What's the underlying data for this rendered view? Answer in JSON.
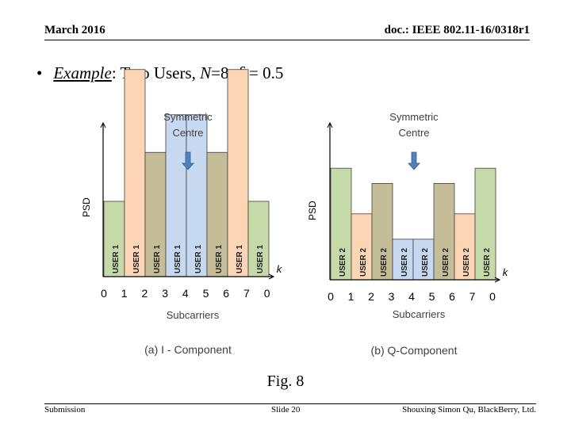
{
  "header": {
    "date": "March 2016",
    "doc_id": "doc.: IEEE 802.11-16/0318r1"
  },
  "bullet": {
    "example_label": "Example",
    "text_a": ": Two Users, ",
    "n_var": "N",
    "text_b": "=8, ",
    "delta": "δ",
    "text_c": " = 0.5"
  },
  "figure_caption": "Fig. 8",
  "footer": {
    "left": "Submission",
    "center": "Slide 20",
    "right": "Shouxing Simon Qu, BlackBerry, Ltd."
  },
  "colors": {
    "green": "#c6d9a8",
    "peach": "#fcd5b5",
    "khaki": "#c4bd97",
    "blue": "#c6d9f1",
    "arrow": "#4f81bd",
    "text_dark": "#404040"
  },
  "chart_data": [
    {
      "type": "bar",
      "title": "(a)  I - Component",
      "annotation": "Symmetric Centre",
      "xlabel": "Subcarriers",
      "ylabel": "PSD",
      "axis_var": "k",
      "ticks": [
        "0",
        "1",
        "2",
        "3",
        "4",
        "5",
        "6",
        "7",
        "0"
      ],
      "ylim": [
        0,
        6
      ],
      "bars": [
        {
          "label": "USER 1",
          "value": 2.0,
          "color": "green"
        },
        {
          "label": "USER 1",
          "value": 5.5,
          "color": "peach"
        },
        {
          "label": "USER 1",
          "value": 3.3,
          "color": "khaki"
        },
        {
          "label": "USER 1",
          "value": 4.3,
          "color": "blue"
        },
        {
          "label": "USER 1",
          "value": 4.3,
          "color": "blue"
        },
        {
          "label": "USER 1",
          "value": 3.3,
          "color": "khaki"
        },
        {
          "label": "USER 1",
          "value": 5.5,
          "color": "peach"
        },
        {
          "label": "USER 1",
          "value": 2.0,
          "color": "green"
        }
      ]
    },
    {
      "type": "bar",
      "title": "(b) Q-Component",
      "annotation": "Symmetric Centre",
      "xlabel": "Subcarriers",
      "ylabel": "PSD",
      "axis_var": "k",
      "ticks": [
        "0",
        "1",
        "2",
        "3",
        "4",
        "5",
        "6",
        "7",
        "0"
      ],
      "ylim": [
        0,
        6
      ],
      "bars": [
        {
          "label": "USER 2",
          "value": 4.4,
          "color": "green"
        },
        {
          "label": "USER 2",
          "value": 2.6,
          "color": "peach"
        },
        {
          "label": "USER 2",
          "value": 3.8,
          "color": "khaki"
        },
        {
          "label": "USER 2",
          "value": 1.6,
          "color": "blue"
        },
        {
          "label": "USER 2",
          "value": 1.6,
          "color": "blue"
        },
        {
          "label": "USER 2",
          "value": 3.8,
          "color": "khaki"
        },
        {
          "label": "USER 2",
          "value": 2.6,
          "color": "peach"
        },
        {
          "label": "USER 2",
          "value": 4.4,
          "color": "green"
        }
      ]
    }
  ]
}
